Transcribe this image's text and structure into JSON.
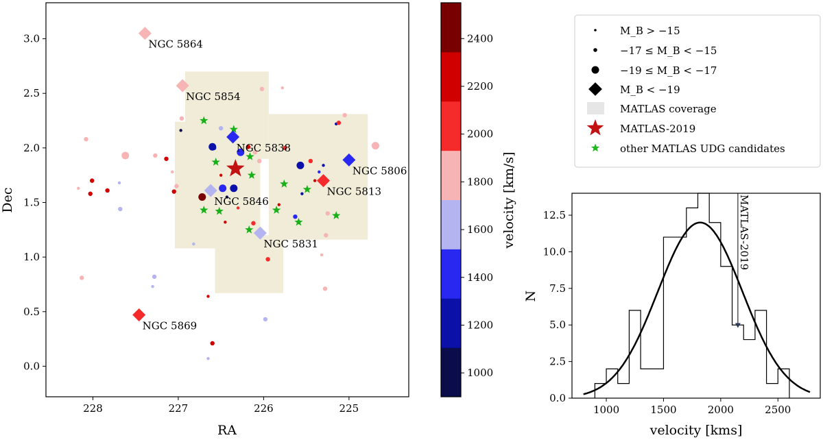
{
  "chart_data": [
    {
      "type": "scatter",
      "xlabel": "RA",
      "ylabel": "Dec",
      "xlim": [
        228.55,
        224.3
      ],
      "ylim": [
        -0.28,
        3.33
      ],
      "xticks": [
        "228",
        "227",
        "226",
        "225"
      ],
      "yticks": [
        "0.0",
        "0.5",
        "1.0",
        "1.5",
        "2.0",
        "2.5",
        "3.0"
      ],
      "colorbar": {
        "label": "velocity [km/s]",
        "range": [
          900,
          2550
        ],
        "ticks": [
          "1000",
          "1200",
          "1400",
          "1600",
          "1800",
          "2000",
          "2200",
          "2400"
        ],
        "colors": [
          "#0a0d4a",
          "#0a10a8",
          "#2828f0",
          "#b4b4f0",
          "#f7b4b4",
          "#f52a2a",
          "#d10000",
          "#790000"
        ]
      },
      "coverage_regions": [
        [
          227.04,
          1.08,
          226.04,
          2.24
        ],
        [
          226.92,
          1.9,
          225.94,
          2.7
        ],
        [
          226.57,
          0.67,
          225.77,
          1.2
        ],
        [
          225.94,
          1.16,
          224.78,
          2.31
        ]
      ],
      "bright_galaxies": [
        {
          "name": "NGC 5864",
          "ra": 227.39,
          "dec": 3.05,
          "color": "#f7b4b4"
        },
        {
          "name": "NGC 5854",
          "ra": 226.95,
          "dec": 2.57,
          "color": "#f7b4b4"
        },
        {
          "name": "NGC 5838",
          "ra": 226.36,
          "dec": 2.1,
          "color": "#2828f0"
        },
        {
          "name": "NGC 5806",
          "ra": 225.0,
          "dec": 1.89,
          "color": "#2828f0"
        },
        {
          "name": "NGC 5813",
          "ra": 225.3,
          "dec": 1.7,
          "color": "#f52a2a"
        },
        {
          "name": "NGC 5846",
          "ra": 226.62,
          "dec": 1.61,
          "color": "#b4b4f0"
        },
        {
          "name": "NGC 5831",
          "ra": 226.04,
          "dec": 1.22,
          "color": "#b4b4f0"
        },
        {
          "name": "NGC 5869",
          "ra": 227.46,
          "dec": 0.47,
          "color": "#f52a2a"
        }
      ],
      "mid_galaxies": [
        {
          "ra": 227.62,
          "dec": 1.93,
          "color": "#f7b4b4"
        },
        {
          "ra": 226.72,
          "dec": 1.55,
          "color": "#790000"
        },
        {
          "ra": 226.6,
          "dec": 2.01,
          "color": "#0a10a8"
        },
        {
          "ra": 226.48,
          "dec": 1.63,
          "color": "#2828f0"
        },
        {
          "ra": 226.35,
          "dec": 1.63,
          "color": "#0a10a8"
        },
        {
          "ra": 226.27,
          "dec": 1.96,
          "color": "#2828f0"
        },
        {
          "ra": 225.57,
          "dec": 1.84,
          "color": "#0a10a8"
        },
        {
          "ra": 224.69,
          "dec": 2.02,
          "color": "#f7b4b4"
        }
      ],
      "small_galaxies": [
        {
          "ra": 228.08,
          "dec": 2.08,
          "color": "#f7b4b4"
        },
        {
          "ra": 228.01,
          "dec": 1.7,
          "color": "#d10000"
        },
        {
          "ra": 228.03,
          "dec": 1.58,
          "color": "#d10000"
        },
        {
          "ra": 227.83,
          "dec": 1.61,
          "color": "#d10000"
        },
        {
          "ra": 227.68,
          "dec": 1.44,
          "color": "#b4b4f0"
        },
        {
          "ra": 228.13,
          "dec": 0.81,
          "color": "#f7b4b4"
        },
        {
          "ra": 227.27,
          "dec": 1.93,
          "color": "#f7b4b4"
        },
        {
          "ra": 227.14,
          "dec": 1.9,
          "color": "#d10000"
        },
        {
          "ra": 227.05,
          "dec": 1.6,
          "color": "#d10000"
        },
        {
          "ra": 227.02,
          "dec": 1.65,
          "color": "#f7b4b4"
        },
        {
          "ra": 227.28,
          "dec": 0.82,
          "color": "#b4b4f0"
        },
        {
          "ra": 226.96,
          "dec": 2.27,
          "color": "#f7b4b4"
        },
        {
          "ra": 226.58,
          "dec": 2.0,
          "color": "#2828f0"
        },
        {
          "ra": 226.5,
          "dec": 2.18,
          "color": "#b4b4f0"
        },
        {
          "ra": 226.18,
          "dec": 2.01,
          "color": "#d10000"
        },
        {
          "ra": 226.1,
          "dec": 1.96,
          "color": "#f7b4b4"
        },
        {
          "ra": 226.12,
          "dec": 1.31,
          "color": "#f52a2a"
        },
        {
          "ra": 226.05,
          "dec": 1.88,
          "color": "#f7b4b4"
        },
        {
          "ra": 226.02,
          "dec": 2.54,
          "color": "#f7b4b4"
        },
        {
          "ra": 225.95,
          "dec": 0.98,
          "color": "#f52a2a"
        },
        {
          "ra": 225.75,
          "dec": 2.0,
          "color": "#f52a2a"
        },
        {
          "ra": 225.63,
          "dec": 1.37,
          "color": "#2828f0"
        },
        {
          "ra": 225.45,
          "dec": 1.88,
          "color": "#f52a2a"
        },
        {
          "ra": 225.27,
          "dec": 1.2,
          "color": "#f7b4b4"
        },
        {
          "ra": 225.25,
          "dec": 1.4,
          "color": "#f7b4b4"
        },
        {
          "ra": 225.12,
          "dec": 2.23,
          "color": "#f52a2a"
        },
        {
          "ra": 225.05,
          "dec": 2.3,
          "color": "#f7b4b4"
        },
        {
          "ra": 225.28,
          "dec": 0.71,
          "color": "#f7b4b4"
        },
        {
          "ra": 225.98,
          "dec": 0.43,
          "color": "#b4b4f0"
        },
        {
          "ra": 226.6,
          "dec": 0.21,
          "color": "#d10000"
        }
      ],
      "tiny_galaxies": [
        {
          "ra": 228.17,
          "dec": 1.63,
          "color": "#f7b4b4"
        },
        {
          "ra": 227.69,
          "dec": 1.68,
          "color": "#b4b4f0"
        },
        {
          "ra": 227.07,
          "dec": 1.78,
          "color": "#f7b4b4"
        },
        {
          "ra": 226.97,
          "dec": 2.16,
          "color": "#0a0d4a"
        },
        {
          "ra": 227.3,
          "dec": 0.73,
          "color": "#b4b4f0"
        },
        {
          "ra": 226.82,
          "dec": 1.12,
          "color": "#b4b4f0"
        },
        {
          "ra": 226.65,
          "dec": 0.64,
          "color": "#d10000"
        },
        {
          "ra": 226.65,
          "dec": 0.07,
          "color": "#b4b4f0"
        },
        {
          "ra": 226.45,
          "dec": 1.32,
          "color": "#d10000"
        },
        {
          "ra": 226.43,
          "dec": 1.55,
          "color": "#0a0d4a"
        },
        {
          "ra": 226.5,
          "dec": 1.75,
          "color": "#d10000"
        },
        {
          "ra": 225.78,
          "dec": 2.55,
          "color": "#f7b4b4"
        },
        {
          "ra": 225.82,
          "dec": 1.48,
          "color": "#d10000"
        },
        {
          "ra": 225.4,
          "dec": 1.7,
          "color": "#d10000"
        },
        {
          "ra": 225.35,
          "dec": 1.78,
          "color": "#2828f0"
        },
        {
          "ra": 225.32,
          "dec": 1.02,
          "color": "#f7b4b4"
        },
        {
          "ra": 225.3,
          "dec": 1.84,
          "color": "#0a10a8"
        },
        {
          "ra": 225.15,
          "dec": 2.22,
          "color": "#0a10a8"
        },
        {
          "ra": 226.3,
          "dec": 1.45,
          "color": "#f52a2a"
        },
        {
          "ra": 225.55,
          "dec": 1.58,
          "color": "#0a10a8"
        }
      ],
      "udg_candidates": [
        {
          "ra": 226.7,
          "dec": 2.25
        },
        {
          "ra": 226.35,
          "dec": 2.17
        },
        {
          "ra": 226.56,
          "dec": 1.87
        },
        {
          "ra": 226.16,
          "dec": 1.92
        },
        {
          "ra": 226.14,
          "dec": 1.75
        },
        {
          "ra": 225.76,
          "dec": 1.67
        },
        {
          "ra": 225.49,
          "dec": 1.62
        },
        {
          "ra": 226.7,
          "dec": 1.43
        },
        {
          "ra": 226.52,
          "dec": 1.42
        },
        {
          "ra": 225.85,
          "dec": 1.43
        },
        {
          "ra": 225.59,
          "dec": 1.32
        },
        {
          "ra": 225.15,
          "dec": 1.38
        },
        {
          "ra": 226.17,
          "dec": 1.25
        }
      ],
      "matlas_2019": {
        "ra": 226.33,
        "dec": 1.81,
        "color": "#c31212"
      }
    },
    {
      "type": "histogram",
      "xlabel": "velocity [kms]",
      "ylabel": "N",
      "xlim": [
        700,
        2870
      ],
      "ylim": [
        0,
        14.0
      ],
      "xticks": [
        "1000",
        "1500",
        "2000",
        "2500"
      ],
      "yticks": [
        "0.0",
        "2.5",
        "5.0",
        "7.5",
        "10.0",
        "12.5"
      ],
      "bin_edges": [
        900,
        1000,
        1100,
        1200,
        1300,
        1400,
        1500,
        1600,
        1700,
        1800,
        1900,
        2000,
        2100,
        2200,
        2300,
        2400,
        2500,
        2600
      ],
      "counts": [
        1,
        2,
        1,
        6,
        2,
        2,
        11,
        11,
        13,
        14,
        12,
        9,
        5,
        4,
        6,
        1,
        2
      ],
      "gaussian_fit": {
        "mean": 1820,
        "sigma": 370,
        "peak": 12.0,
        "x_range": [
          800,
          2780
        ]
      },
      "annotation": {
        "label": "MATLAS-2019",
        "velocity": 2150,
        "arrow_from": 14.0,
        "arrow_to": 4.8
      }
    }
  ],
  "legend": {
    "items": [
      {
        "id": "mb15",
        "label": "M_B > −15"
      },
      {
        "id": "mb1715",
        "label": "−17 ≤ M_B < −15"
      },
      {
        "id": "mb1917",
        "label": "−19 ≤ M_B < −17"
      },
      {
        "id": "mb19",
        "label": "M_B < −19"
      },
      {
        "id": "coverage",
        "label": "MATLAS coverage"
      },
      {
        "id": "matlas",
        "label": "MATLAS-2019"
      },
      {
        "id": "udg",
        "label": "other MATLAS UDG candidates"
      }
    ],
    "coverage_color": "#e6e6e6",
    "udg_color": "#1fb81f",
    "marker_color": "#000000"
  },
  "colors": {
    "coverage": "#f0ecd8",
    "udg_star": "#19b019",
    "matlas_star": "#c31212",
    "hist_line": "#000000"
  }
}
